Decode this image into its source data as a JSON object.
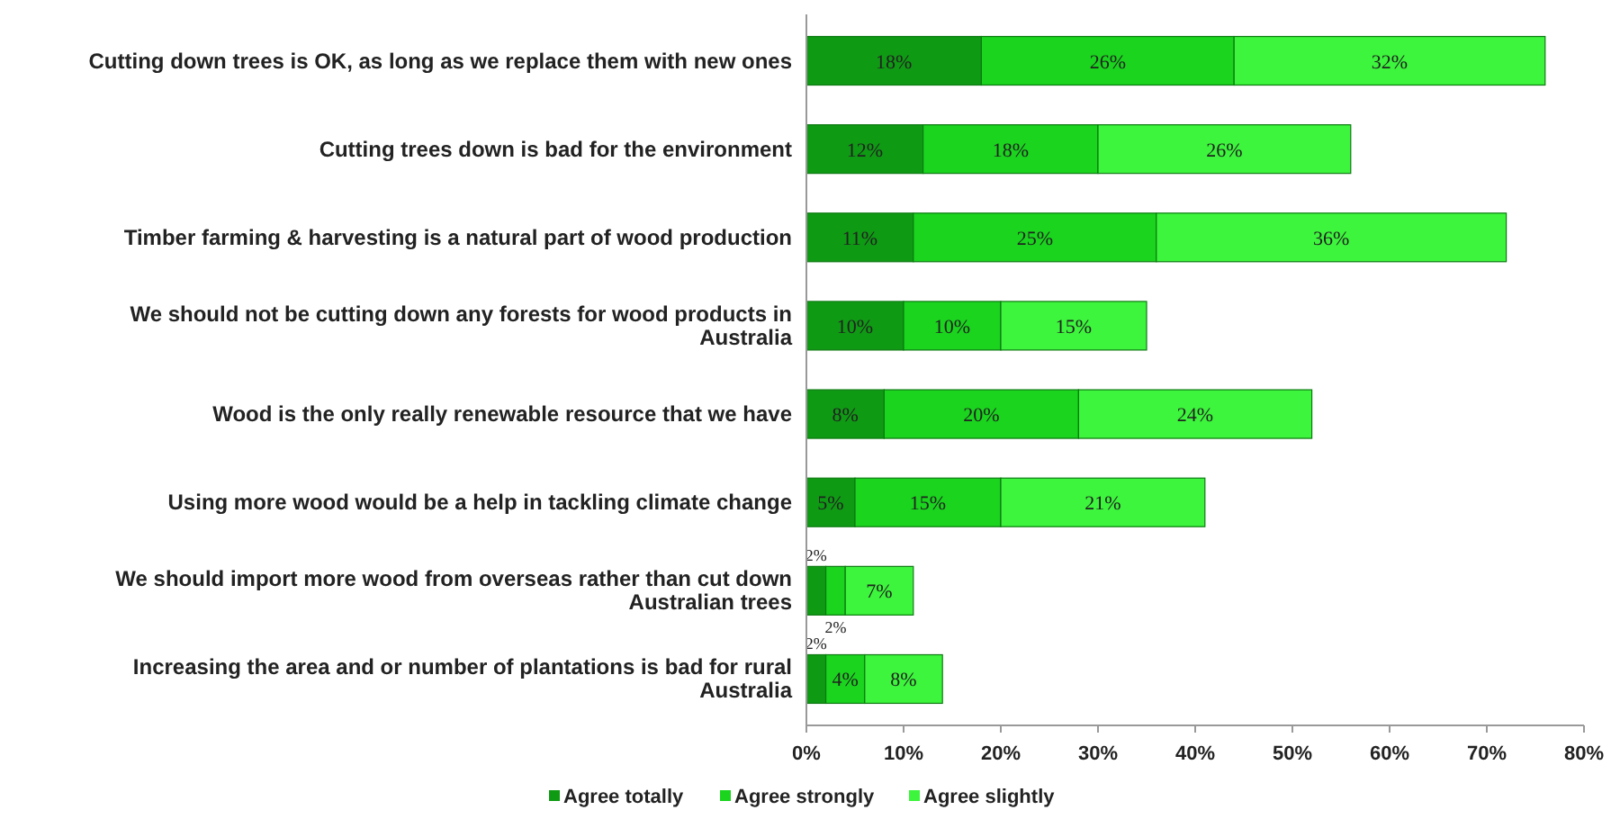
{
  "chart_data": {
    "type": "bar",
    "orientation": "horizontal",
    "stacked": true,
    "categories": [
      "Cutting down trees is OK, as long as we replace them with new ones",
      "Cutting trees down is bad for the environment",
      "Timber farming & harvesting is a natural part of wood production",
      "We should not be cutting down any forests for wood products in Australia",
      "Wood is the only really renewable resource that we have",
      "Using more wood would be a help in tackling climate change",
      "We should import more wood from overseas rather than cut down Australian trees",
      "Increasing the area and or number of plantations is bad for rural Australia"
    ],
    "series": [
      {
        "name": "Agree totally",
        "color": "#0f9a14",
        "values": [
          18,
          12,
          11,
          10,
          8,
          5,
          2,
          2
        ],
        "value_labels": [
          "18%",
          "12%",
          "11%",
          "10%",
          "8%",
          "5%",
          "2%",
          "2%"
        ]
      },
      {
        "name": "Agree strongly",
        "color": "#1ad41e",
        "values": [
          26,
          18,
          25,
          10,
          20,
          15,
          2,
          4
        ],
        "value_labels": [
          "26%",
          "18%",
          "25%",
          "10%",
          "20%",
          "15%",
          "2%",
          "4%"
        ]
      },
      {
        "name": "Agree slightly",
        "color": "#3cf53c",
        "values": [
          32,
          26,
          36,
          15,
          24,
          21,
          7,
          8
        ],
        "value_labels": [
          "32%",
          "26%",
          "36%",
          "15%",
          "24%",
          "21%",
          "7%",
          "8%"
        ]
      }
    ],
    "xlim": [
      0,
      80
    ],
    "xticks": [
      {
        "value": 0,
        "label": "0%"
      },
      {
        "value": 10,
        "label": "10%"
      },
      {
        "value": 20,
        "label": "20%"
      },
      {
        "value": 30,
        "label": "30%"
      },
      {
        "value": 40,
        "label": "40%"
      },
      {
        "value": 50,
        "label": "50%"
      },
      {
        "value": 60,
        "label": "60%"
      },
      {
        "value": 70,
        "label": "70%"
      },
      {
        "value": 80,
        "label": "80%"
      }
    ],
    "grid": false,
    "legend": "bottom"
  }
}
